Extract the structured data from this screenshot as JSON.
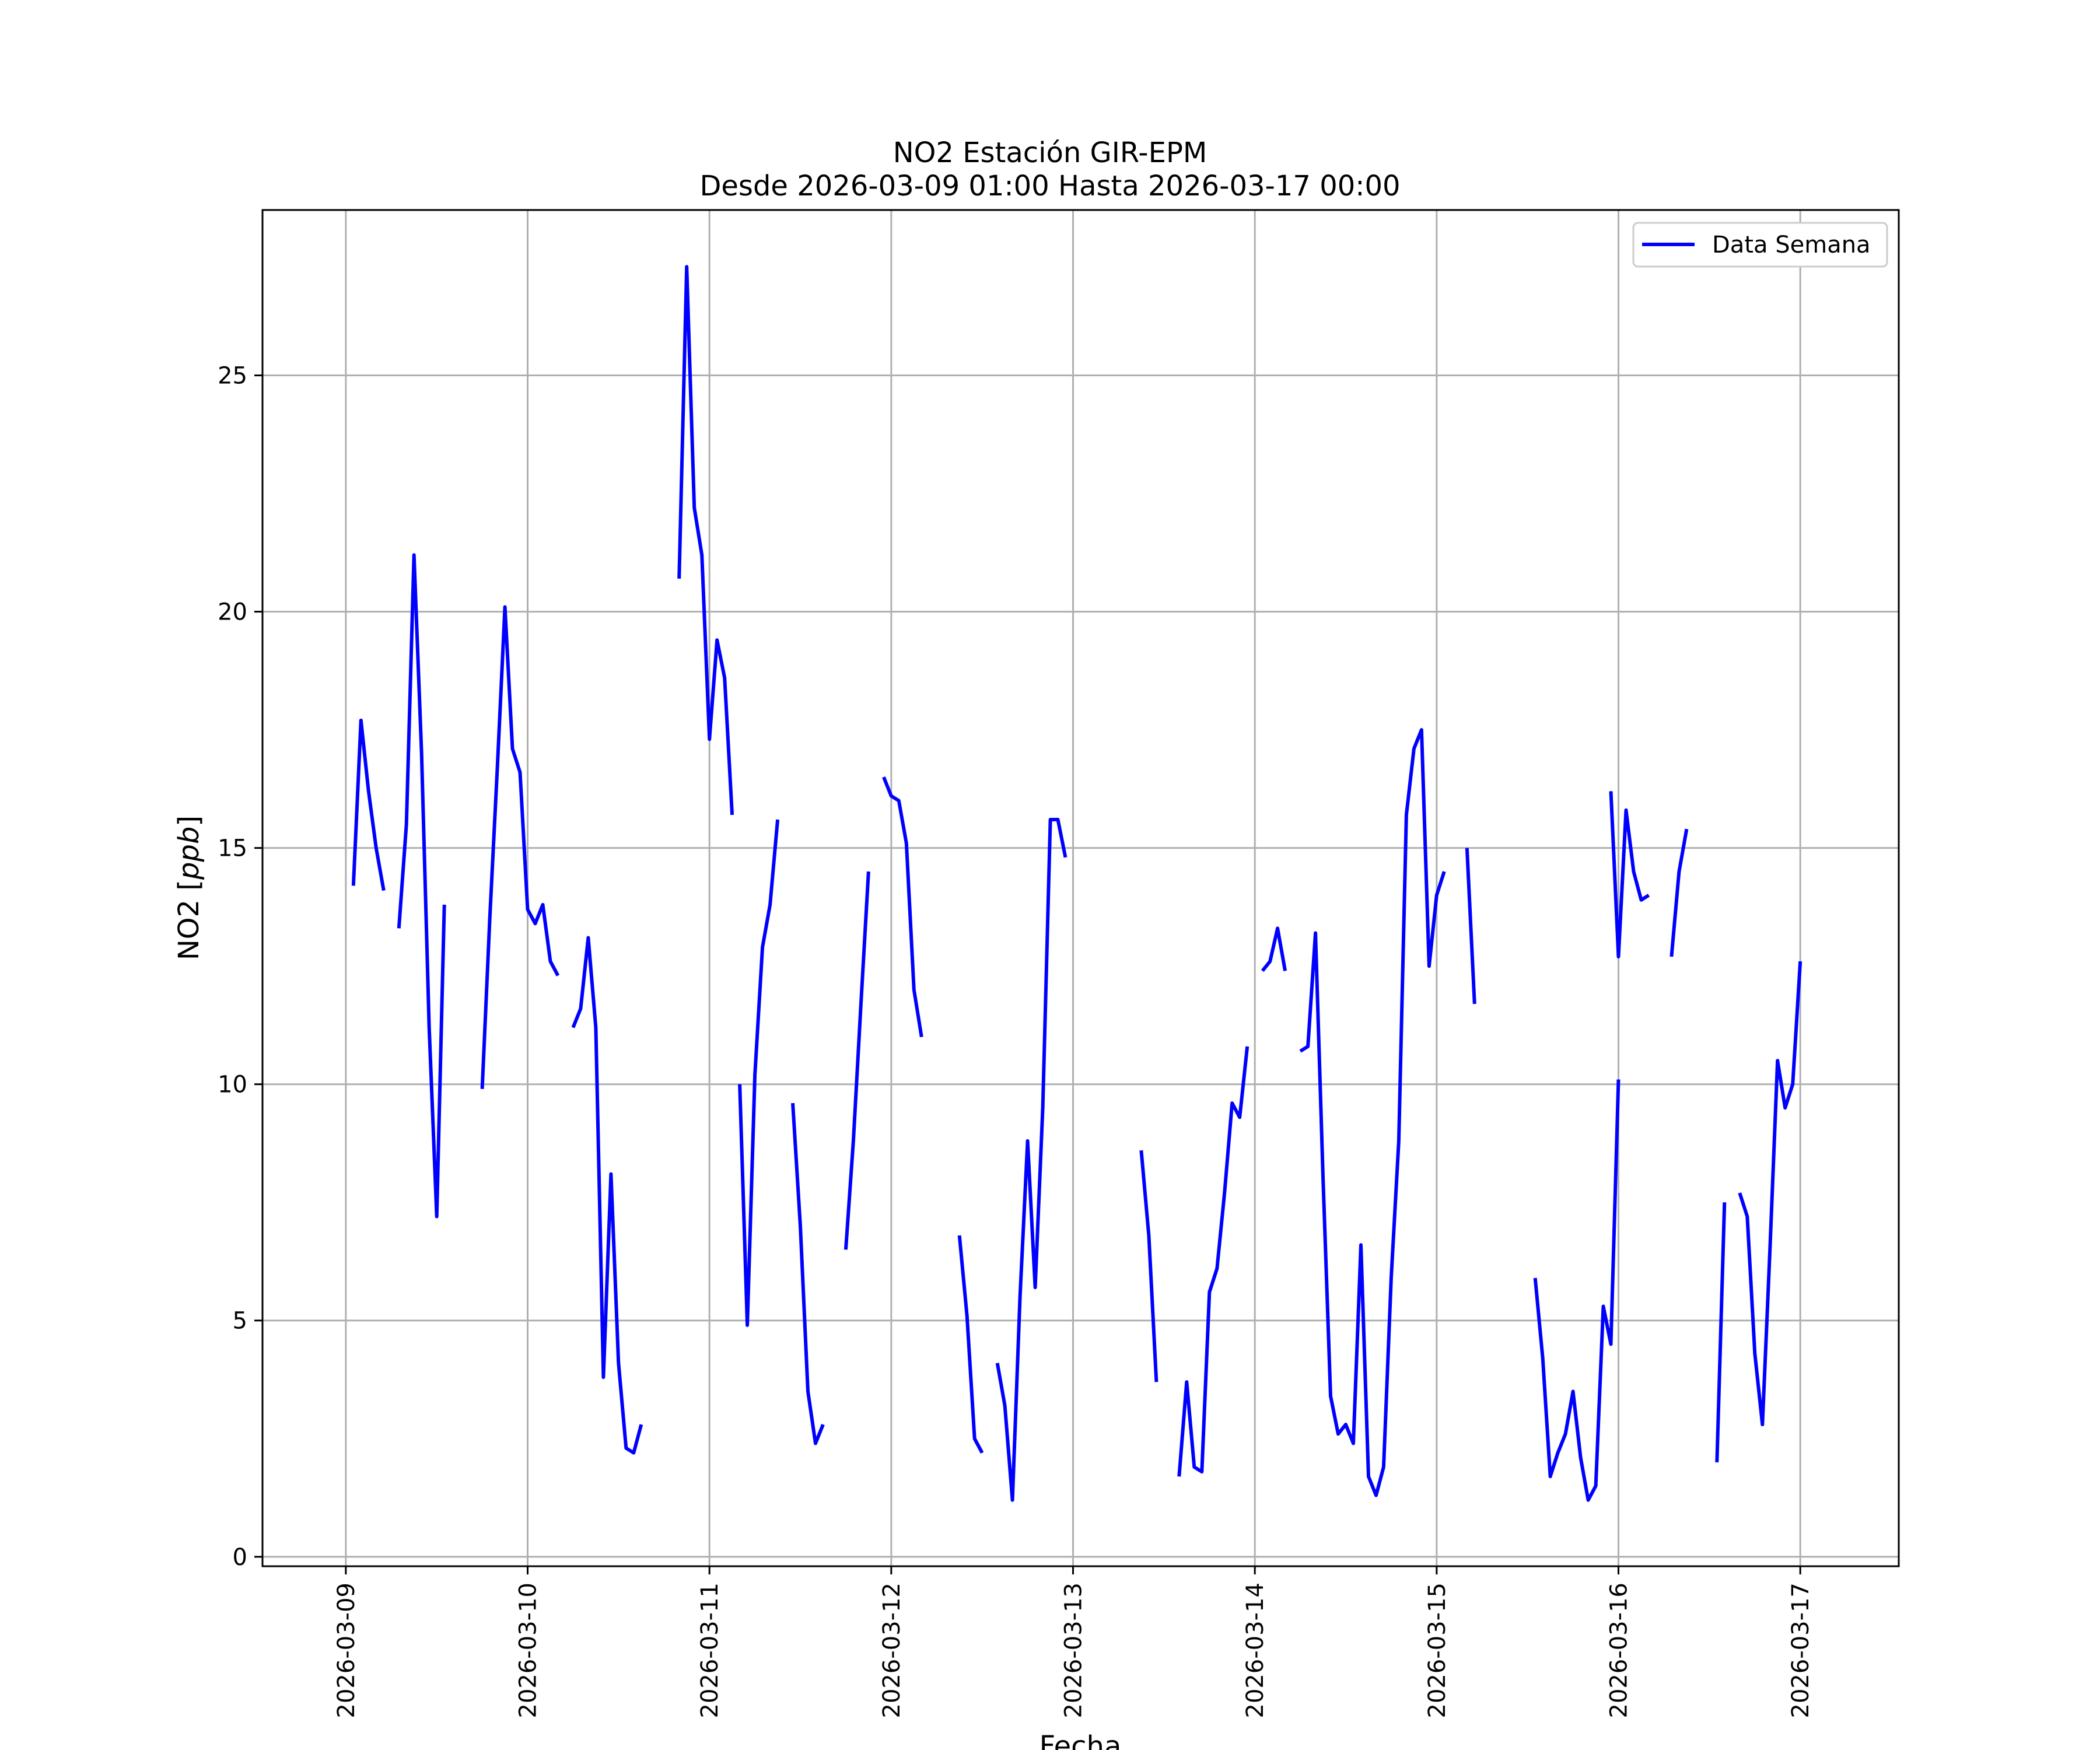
{
  "chart_data": {
    "type": "line",
    "title": "NO2 Estación GIR-EPM",
    "subtitle": "Desde 2026-03-09 01:00 Hasta 2026-03-17 00:00",
    "xlabel": "Fecha",
    "ylabel": "NO2 [ppb]",
    "ylabel_main": "NO2 [",
    "ylabel_unit": "ppb",
    "ylabel_close": "]",
    "x_ticks": [
      "2026-03-09",
      "2026-03-10",
      "2026-03-11",
      "2026-03-12",
      "2026-03-13",
      "2026-03-14",
      "2026-03-15",
      "2026-03-16",
      "2026-03-17"
    ],
    "y_ticks": [
      0,
      5,
      10,
      15,
      20,
      25
    ],
    "xlim": [
      "2026-03-08 13:00",
      "2026-03-17 13:00"
    ],
    "ylim": [
      -0.2,
      28.5
    ],
    "grid": true,
    "legend_position": "top-right",
    "series": [
      {
        "name": "Data Semana",
        "color": "#0000ff",
        "segments": [
          [
            [
              "2026-03-09 01:00",
              14.2
            ],
            [
              "2026-03-09 02:00",
              17.7
            ],
            [
              "2026-03-09 03:00",
              16.2
            ],
            [
              "2026-03-09 04:00",
              15.0
            ],
            [
              "2026-03-09 05:00",
              14.1
            ]
          ],
          [
            [
              "2026-03-09 07:00",
              13.3
            ],
            [
              "2026-03-09 08:00",
              15.5
            ],
            [
              "2026-03-09 09:00",
              21.2
            ],
            [
              "2026-03-09 10:00",
              17.0
            ],
            [
              "2026-03-09 11:00",
              11.2
            ],
            [
              "2026-03-09 12:00",
              7.2
            ],
            [
              "2026-03-09 13:00",
              13.8
            ]
          ],
          [
            [
              "2026-03-09 18:00",
              9.9
            ],
            [
              "2026-03-09 19:00",
              13.5
            ],
            [
              "2026-03-09 20:00",
              16.7
            ],
            [
              "2026-03-09 21:00",
              20.1
            ],
            [
              "2026-03-09 22:00",
              17.1
            ],
            [
              "2026-03-09 23:00",
              16.6
            ],
            [
              "2026-03-10 00:00",
              13.7
            ],
            [
              "2026-03-10 01:00",
              13.4
            ],
            [
              "2026-03-10 02:00",
              13.8
            ],
            [
              "2026-03-10 03:00",
              12.6
            ],
            [
              "2026-03-10 04:00",
              12.3
            ]
          ],
          [
            [
              "2026-03-10 06:00",
              11.2
            ],
            [
              "2026-03-10 07:00",
              11.6
            ],
            [
              "2026-03-10 08:00",
              13.1
            ],
            [
              "2026-03-10 09:00",
              11.2
            ],
            [
              "2026-03-10 10:00",
              3.8
            ],
            [
              "2026-03-10 11:00",
              8.1
            ],
            [
              "2026-03-10 12:00",
              4.1
            ],
            [
              "2026-03-10 13:00",
              2.3
            ],
            [
              "2026-03-10 14:00",
              2.2
            ],
            [
              "2026-03-10 15:00",
              2.8
            ]
          ],
          [
            [
              "2026-03-10 20:00",
              20.7
            ],
            [
              "2026-03-10 21:00",
              27.3
            ],
            [
              "2026-03-10 22:00",
              22.2
            ],
            [
              "2026-03-10 23:00",
              21.2
            ],
            [
              "2026-03-11 00:00",
              17.3
            ],
            [
              "2026-03-11 01:00",
              19.4
            ],
            [
              "2026-03-11 02:00",
              18.6
            ],
            [
              "2026-03-11 03:00",
              15.7
            ]
          ],
          [
            [
              "2026-03-11 04:00",
              10.0
            ],
            [
              "2026-03-11 05:00",
              4.9
            ],
            [
              "2026-03-11 06:00",
              10.2
            ],
            [
              "2026-03-11 07:00",
              12.9
            ],
            [
              "2026-03-11 08:00",
              13.8
            ],
            [
              "2026-03-11 09:00",
              15.6
            ]
          ],
          [
            [
              "2026-03-11 11:00",
              9.6
            ],
            [
              "2026-03-11 12:00",
              7.0
            ],
            [
              "2026-03-11 13:00",
              3.5
            ],
            [
              "2026-03-11 14:00",
              2.4
            ],
            [
              "2026-03-11 15:00",
              2.8
            ]
          ],
          [
            [
              "2026-03-11 18:00",
              6.5
            ],
            [
              "2026-03-11 19:00",
              8.8
            ],
            [
              "2026-03-11 20:00",
              11.7
            ],
            [
              "2026-03-11 21:00",
              14.5
            ]
          ],
          [
            [
              "2026-03-11 23:00",
              16.5
            ],
            [
              "2026-03-12 00:00",
              16.1
            ],
            [
              "2026-03-12 01:00",
              16.0
            ],
            [
              "2026-03-12 02:00",
              15.1
            ],
            [
              "2026-03-12 03:00",
              12.0
            ],
            [
              "2026-03-12 04:00",
              11.0
            ]
          ],
          [
            [
              "2026-03-12 09:00",
              6.8
            ],
            [
              "2026-03-12 10:00",
              5.1
            ],
            [
              "2026-03-12 11:00",
              2.5
            ],
            [
              "2026-03-12 12:00",
              2.2
            ]
          ],
          [
            [
              "2026-03-12 14:00",
              4.1
            ],
            [
              "2026-03-12 15:00",
              3.2
            ],
            [
              "2026-03-12 16:00",
              1.2
            ],
            [
              "2026-03-12 17:00",
              5.5
            ],
            [
              "2026-03-12 18:00",
              8.8
            ],
            [
              "2026-03-12 19:00",
              5.7
            ],
            [
              "2026-03-12 20:00",
              9.5
            ],
            [
              "2026-03-12 21:00",
              15.6
            ],
            [
              "2026-03-12 22:00",
              15.6
            ],
            [
              "2026-03-12 23:00",
              14.8
            ]
          ],
          [
            [
              "2026-03-13 09:00",
              8.6
            ],
            [
              "2026-03-13 10:00",
              6.8
            ],
            [
              "2026-03-13 11:00",
              3.7
            ]
          ],
          [
            [
              "2026-03-13 14:00",
              1.7
            ],
            [
              "2026-03-13 15:00",
              3.7
            ],
            [
              "2026-03-13 16:00",
              1.9
            ],
            [
              "2026-03-13 17:00",
              1.8
            ],
            [
              "2026-03-13 18:00",
              5.6
            ],
            [
              "2026-03-13 19:00",
              6.1
            ],
            [
              "2026-03-13 20:00",
              7.7
            ],
            [
              "2026-03-13 21:00",
              9.6
            ],
            [
              "2026-03-13 22:00",
              9.3
            ],
            [
              "2026-03-13 23:00",
              10.8
            ]
          ],
          [
            [
              "2026-03-14 01:00",
              12.4
            ],
            [
              "2026-03-14 02:00",
              12.6
            ],
            [
              "2026-03-14 03:00",
              13.3
            ],
            [
              "2026-03-14 04:00",
              12.4
            ]
          ],
          [
            [
              "2026-03-14 06:00",
              10.7
            ],
            [
              "2026-03-14 07:00",
              10.8
            ],
            [
              "2026-03-14 08:00",
              13.2
            ],
            [
              "2026-03-14 09:00",
              8.0
            ],
            [
              "2026-03-14 10:00",
              3.4
            ],
            [
              "2026-03-14 11:00",
              2.6
            ],
            [
              "2026-03-14 12:00",
              2.8
            ],
            [
              "2026-03-14 13:00",
              2.4
            ],
            [
              "2026-03-14 14:00",
              6.6
            ],
            [
              "2026-03-14 15:00",
              1.7
            ],
            [
              "2026-03-14 16:00",
              1.3
            ],
            [
              "2026-03-14 17:00",
              1.9
            ],
            [
              "2026-03-14 18:00",
              5.9
            ],
            [
              "2026-03-14 19:00",
              8.8
            ],
            [
              "2026-03-14 20:00",
              15.7
            ],
            [
              "2026-03-14 21:00",
              17.1
            ],
            [
              "2026-03-14 22:00",
              17.5
            ],
            [
              "2026-03-14 23:00",
              12.5
            ],
            [
              "2026-03-15 00:00",
              14.0
            ],
            [
              "2026-03-15 01:00",
              14.5
            ]
          ],
          [
            [
              "2026-03-15 04:00",
              15.0
            ],
            [
              "2026-03-15 05:00",
              11.7
            ]
          ],
          [
            [
              "2026-03-15 13:00",
              5.9
            ],
            [
              "2026-03-15 14:00",
              4.2
            ],
            [
              "2026-03-15 15:00",
              1.7
            ],
            [
              "2026-03-15 16:00",
              2.2
            ],
            [
              "2026-03-15 17:00",
              2.6
            ],
            [
              "2026-03-15 18:00",
              3.5
            ],
            [
              "2026-03-15 19:00",
              2.1
            ],
            [
              "2026-03-15 20:00",
              1.2
            ],
            [
              "2026-03-15 21:00",
              1.5
            ],
            [
              "2026-03-15 22:00",
              5.3
            ],
            [
              "2026-03-15 23:00",
              4.5
            ],
            [
              "2026-03-16 00:00",
              10.1
            ]
          ],
          [
            [
              "2026-03-15 23:00",
              16.2
            ],
            [
              "2026-03-16 00:00",
              12.7
            ],
            [
              "2026-03-16 01:00",
              15.8
            ],
            [
              "2026-03-16 02:00",
              14.5
            ],
            [
              "2026-03-16 03:00",
              13.9
            ],
            [
              "2026-03-16 04:00",
              14.0
            ]
          ],
          [
            [
              "2026-03-16 07:00",
              12.7
            ],
            [
              "2026-03-16 08:00",
              14.5
            ],
            [
              "2026-03-16 09:00",
              15.4
            ]
          ],
          [
            [
              "2026-03-16 13:00",
              2.0
            ],
            [
              "2026-03-16 14:00",
              7.5
            ]
          ],
          [
            [
              "2026-03-16 16:00",
              7.7
            ],
            [
              "2026-03-16 17:00",
              7.2
            ],
            [
              "2026-03-16 18:00",
              4.3
            ],
            [
              "2026-03-16 19:00",
              2.8
            ],
            [
              "2026-03-16 20:00",
              6.5
            ],
            [
              "2026-03-16 21:00",
              10.5
            ],
            [
              "2026-03-16 22:00",
              9.5
            ],
            [
              "2026-03-16 23:00",
              10.0
            ],
            [
              "2026-03-17 00:00",
              12.6
            ]
          ]
        ]
      }
    ]
  }
}
